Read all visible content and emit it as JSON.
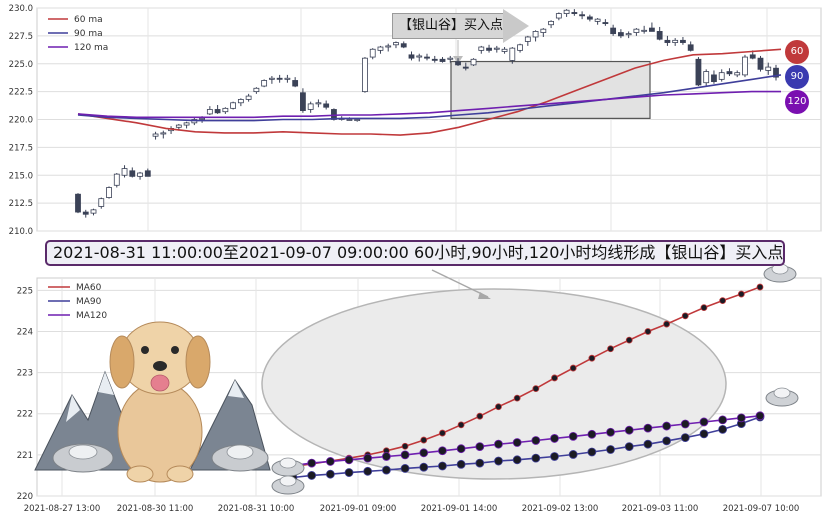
{
  "banner": {
    "text": "2021-08-31 11:00:00至2021-09-07 09:00:00 60小时,90小时,120小时均线形成【银山谷】买入点"
  },
  "buy_label": "【银山谷】买入点",
  "badges": [
    {
      "label": "60",
      "color": "#c0393b"
    },
    {
      "label": "90",
      "color": "#3a3ab0"
    },
    {
      "label": "120",
      "color": "#7a0fb0"
    }
  ],
  "colors": {
    "ma60": "#c0393b",
    "ma90": "#3f3f9a",
    "ma120": "#6f1fb0",
    "candle_up": "#ffffff",
    "candle_down": "#3b4257",
    "candle_edge": "#3b4257"
  },
  "chart_data": [
    {
      "type": "candlestick",
      "title": "",
      "ylim": [
        210.0,
        230.0
      ],
      "yticks": [
        "210.0",
        "212.5",
        "215.0",
        "217.5",
        "220.0",
        "222.5",
        "225.0",
        "227.5",
        "230.0"
      ],
      "grid": true,
      "legend": {
        "placement": "top-left",
        "entries": [
          "60 ma",
          "90 ma",
          "120 ma"
        ]
      },
      "candles": [
        [
          213.3,
          213.4,
          211.6,
          211.7
        ],
        [
          211.7,
          211.9,
          211.2,
          211.5
        ],
        [
          211.6,
          212.0,
          211.4,
          211.9
        ],
        [
          212.2,
          213.0,
          212.0,
          212.9
        ],
        [
          213.0,
          214.0,
          212.9,
          213.9
        ],
        [
          214.1,
          215.2,
          213.9,
          215.1
        ],
        [
          215.0,
          215.9,
          214.8,
          215.6
        ],
        [
          215.4,
          215.7,
          214.8,
          214.9
        ],
        [
          214.9,
          215.3,
          214.6,
          215.2
        ],
        [
          215.4,
          215.6,
          214.9,
          214.9
        ],
        [
          218.5,
          218.9,
          218.2,
          218.7
        ],
        [
          218.7,
          219.0,
          218.3,
          218.8
        ],
        [
          219.0,
          219.4,
          218.7,
          219.2
        ],
        [
          219.3,
          219.6,
          219.0,
          219.5
        ],
        [
          219.5,
          219.8,
          219.2,
          219.7
        ],
        [
          219.7,
          220.2,
          219.5,
          220.0
        ],
        [
          220.0,
          220.3,
          219.7,
          220.1
        ],
        [
          220.5,
          221.2,
          220.4,
          220.9
        ],
        [
          220.9,
          221.3,
          220.5,
          220.6
        ],
        [
          220.7,
          221.1,
          220.5,
          221.0
        ],
        [
          221.0,
          221.6,
          220.9,
          221.5
        ],
        [
          221.5,
          221.9,
          221.2,
          221.8
        ],
        [
          221.8,
          222.3,
          221.6,
          222.1
        ],
        [
          222.5,
          222.9,
          222.3,
          222.8
        ],
        [
          223.0,
          223.6,
          222.9,
          223.5
        ],
        [
          223.6,
          223.9,
          223.2,
          223.7
        ],
        [
          223.7,
          224.0,
          223.3,
          223.6
        ],
        [
          223.6,
          224.0,
          223.3,
          223.7
        ],
        [
          223.5,
          223.8,
          222.9,
          223.0
        ],
        [
          222.4,
          222.8,
          220.6,
          220.8
        ],
        [
          220.9,
          221.6,
          220.6,
          221.4
        ],
        [
          221.4,
          221.8,
          221.1,
          221.5
        ],
        [
          221.4,
          221.7,
          220.9,
          221.1
        ],
        [
          220.9,
          221.0,
          219.9,
          220.0
        ],
        [
          220.0,
          220.3,
          219.9,
          220.1
        ],
        [
          220.0,
          220.2,
          219.9,
          220.0
        ],
        [
          219.9,
          220.1,
          219.8,
          220.0
        ],
        [
          222.5,
          225.6,
          222.4,
          225.5
        ],
        [
          225.6,
          226.4,
          225.4,
          226.3
        ],
        [
          226.2,
          226.6,
          225.9,
          226.5
        ],
        [
          226.5,
          226.8,
          226.1,
          226.6
        ],
        [
          226.7,
          227.0,
          226.4,
          226.9
        ],
        [
          226.8,
          227.0,
          226.4,
          226.5
        ],
        [
          225.8,
          226.1,
          225.3,
          225.5
        ],
        [
          225.6,
          225.9,
          225.2,
          225.7
        ],
        [
          225.6,
          225.9,
          225.3,
          225.5
        ],
        [
          225.4,
          225.7,
          225.1,
          225.3
        ],
        [
          225.4,
          225.6,
          225.1,
          225.2
        ],
        [
          225.4,
          225.7,
          225.1,
          225.5
        ],
        [
          225.2,
          225.5,
          224.8,
          224.9
        ],
        [
          224.7,
          225.1,
          224.4,
          224.6
        ],
        [
          224.9,
          225.5,
          224.8,
          225.4
        ],
        [
          226.2,
          226.6,
          225.9,
          226.5
        ],
        [
          226.4,
          226.7,
          226.0,
          226.2
        ],
        [
          226.3,
          226.6,
          226.0,
          226.4
        ],
        [
          226.1,
          226.5,
          225.9,
          226.3
        ],
        [
          225.3,
          226.5,
          225.0,
          226.4
        ],
        [
          226.2,
          226.8,
          226.0,
          226.7
        ],
        [
          227.0,
          227.5,
          226.6,
          227.4
        ],
        [
          227.4,
          228.0,
          227.0,
          227.9
        ],
        [
          227.8,
          228.2,
          227.4,
          228.1
        ],
        [
          228.5,
          228.9,
          228.2,
          228.8
        ],
        [
          229.1,
          229.6,
          228.9,
          229.5
        ],
        [
          229.5,
          229.9,
          229.2,
          229.8
        ],
        [
          229.6,
          229.9,
          229.3,
          229.5
        ],
        [
          229.4,
          229.7,
          229.0,
          229.3
        ],
        [
          229.2,
          229.4,
          228.8,
          229.0
        ],
        [
          228.8,
          229.1,
          228.5,
          229.0
        ],
        [
          228.7,
          229.0,
          228.4,
          228.6
        ],
        [
          228.2,
          228.5,
          227.5,
          227.7
        ],
        [
          227.8,
          228.1,
          227.3,
          227.5
        ],
        [
          227.6,
          227.9,
          227.3,
          227.7
        ],
        [
          227.8,
          228.2,
          227.5,
          228.1
        ],
        [
          228.0,
          228.4,
          227.7,
          228.0
        ],
        [
          228.2,
          228.7,
          227.9,
          227.9
        ],
        [
          227.9,
          228.3,
          227.1,
          227.2
        ],
        [
          227.1,
          227.5,
          226.6,
          226.9
        ],
        [
          226.9,
          227.3,
          226.6,
          227.1
        ],
        [
          227.1,
          227.4,
          226.7,
          226.9
        ],
        [
          226.7,
          227.0,
          226.1,
          226.2
        ],
        [
          225.4,
          225.6,
          223.0,
          223.1
        ],
        [
          223.3,
          224.5,
          223.0,
          224.3
        ],
        [
          224.0,
          224.4,
          223.2,
          223.4
        ],
        [
          223.6,
          224.5,
          223.4,
          224.2
        ],
        [
          224.3,
          224.6,
          223.9,
          224.1
        ],
        [
          224.0,
          224.4,
          223.8,
          224.2
        ],
        [
          224.0,
          225.8,
          223.8,
          225.6
        ],
        [
          225.8,
          226.2,
          225.4,
          225.5
        ],
        [
          225.5,
          225.7,
          224.3,
          224.5
        ],
        [
          224.4,
          225.1,
          224.0,
          224.7
        ],
        [
          224.6,
          224.9,
          223.5,
          223.8
        ]
      ],
      "ma60": [
        220.5,
        220.1,
        219.7,
        219.2,
        218.9,
        218.8,
        218.8,
        218.9,
        218.8,
        218.7,
        218.7,
        218.6,
        218.8,
        219.3,
        220.0,
        220.7,
        221.6,
        222.6,
        223.6,
        224.6,
        225.3,
        225.8,
        225.9,
        226.1,
        226.3
      ],
      "ma90": [
        220.4,
        220.2,
        220.1,
        220.0,
        219.9,
        219.9,
        219.9,
        220.0,
        220.0,
        220.1,
        220.1,
        220.1,
        220.2,
        220.4,
        220.6,
        220.9,
        221.2,
        221.5,
        221.8,
        222.1,
        222.4,
        222.8,
        223.2,
        223.6,
        224.0
      ],
      "ma120": [
        220.5,
        220.3,
        220.2,
        220.2,
        220.2,
        220.2,
        220.2,
        220.3,
        220.3,
        220.4,
        220.4,
        220.5,
        220.6,
        220.8,
        221.0,
        221.2,
        221.4,
        221.6,
        221.8,
        222.0,
        222.2,
        222.3,
        222.4,
        222.5,
        222.5
      ]
    },
    {
      "type": "line",
      "title": "",
      "ylim": [
        220.0,
        225.3
      ],
      "yticks": [
        "220",
        "221",
        "222",
        "223",
        "224",
        "225"
      ],
      "x_tick_labels": [
        "2021-08-27 13:00",
        "2021-08-30 11:00",
        "2021-08-31 10:00",
        "2021-09-01 09:00",
        "2021-09-01 14:00",
        "2021-09-02 13:00",
        "2021-09-03 11:00",
        "2021-09-07 10:00"
      ],
      "grid": true,
      "legend": {
        "placement": "top-left",
        "entries": [
          "MA60",
          "MA90",
          "MA120"
        ]
      },
      "series": [
        {
          "name": "MA60",
          "values": [
            220.72,
            220.78,
            220.85,
            220.92,
            221.0,
            221.1,
            221.21,
            221.36,
            221.53,
            221.73,
            221.94,
            222.17,
            222.38,
            222.61,
            222.87,
            223.11,
            223.35,
            223.58,
            223.79,
            224.0,
            224.18,
            224.38,
            224.58,
            224.75,
            224.91,
            225.08
          ]
        },
        {
          "name": "MA90",
          "values": [
            220.45,
            220.5,
            220.53,
            220.57,
            220.6,
            220.63,
            220.67,
            220.7,
            220.73,
            220.77,
            220.8,
            220.85,
            220.88,
            220.92,
            220.96,
            221.01,
            221.07,
            221.13,
            221.2,
            221.26,
            221.34,
            221.42,
            221.51,
            221.62,
            221.76,
            221.92
          ]
        },
        {
          "name": "MA120",
          "values": [
            220.74,
            220.8,
            220.84,
            220.88,
            220.92,
            220.96,
            221.0,
            221.05,
            221.1,
            221.15,
            221.2,
            221.26,
            221.3,
            221.35,
            221.4,
            221.45,
            221.5,
            221.55,
            221.6,
            221.65,
            221.7,
            221.75,
            221.8,
            221.85,
            221.9,
            221.95
          ]
        }
      ]
    }
  ]
}
